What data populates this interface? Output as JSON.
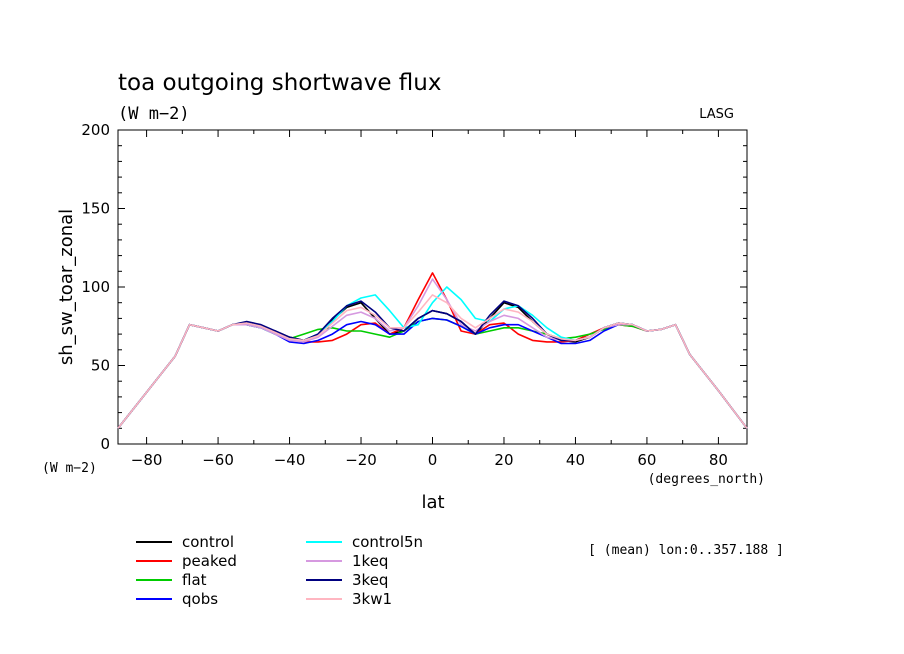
{
  "chart_data": {
    "type": "line",
    "title": "toa outgoing shortwave flux",
    "subtitle": "(W m−2)",
    "source_label": "LASG",
    "ylabel": "sh_sw_toar_zonal",
    "y_units": "(W m−2)",
    "xlabel": "lat",
    "x_units": "(degrees_north)",
    "annotation": "[ (mean) lon:0..357.188 ]",
    "xlim": [
      -88,
      88
    ],
    "ylim": [
      0,
      200
    ],
    "x_ticks": [
      -80,
      -60,
      -40,
      -20,
      0,
      20,
      40,
      60,
      80
    ],
    "y_ticks": [
      0,
      50,
      100,
      150,
      200
    ],
    "grid": false,
    "legend_position": "bottom-left",
    "x": [
      -88,
      -80,
      -72,
      -68,
      -64,
      -60,
      -56,
      -52,
      -48,
      -44,
      -40,
      -36,
      -32,
      -28,
      -24,
      -20,
      -16,
      -12,
      -8,
      -4,
      0,
      4,
      8,
      12,
      16,
      20,
      24,
      28,
      32,
      36,
      40,
      44,
      48,
      52,
      56,
      60,
      64,
      68,
      72,
      80,
      88
    ],
    "series": [
      {
        "name": "control",
        "color": "#000000",
        "values": [
          10,
          33,
          56,
          76,
          74,
          72,
          76,
          77,
          75,
          72,
          68,
          66,
          70,
          79,
          87,
          90,
          80,
          70,
          72,
          80,
          85,
          83,
          78,
          70,
          80,
          90,
          87,
          78,
          70,
          66,
          65,
          68,
          74,
          77,
          76,
          72,
          73,
          76,
          57,
          34,
          10
        ]
      },
      {
        "name": "peaked",
        "color": "#ff0000",
        "values": [
          10,
          33,
          56,
          76,
          74,
          72,
          76,
          76,
          74,
          70,
          66,
          65,
          65,
          66,
          70,
          76,
          77,
          70,
          74,
          92,
          109,
          92,
          72,
          70,
          76,
          77,
          70,
          66,
          65,
          65,
          66,
          70,
          74,
          76,
          75,
          72,
          73,
          76,
          57,
          34,
          10
        ]
      },
      {
        "name": "flat",
        "color": "#00cc00",
        "values": [
          10,
          33,
          56,
          76,
          74,
          72,
          76,
          76,
          74,
          70,
          67,
          70,
          73,
          74,
          72,
          72,
          70,
          68,
          72,
          78,
          80,
          79,
          75,
          70,
          72,
          74,
          74,
          72,
          70,
          67,
          68,
          70,
          73,
          76,
          75,
          72,
          73,
          76,
          57,
          34,
          10
        ]
      },
      {
        "name": "qobs",
        "color": "#0000ff",
        "values": [
          10,
          33,
          56,
          76,
          74,
          72,
          76,
          76,
          74,
          70,
          65,
          64,
          66,
          70,
          76,
          78,
          76,
          70,
          70,
          78,
          80,
          79,
          75,
          70,
          74,
          76,
          76,
          72,
          68,
          64,
          64,
          66,
          72,
          76,
          76,
          72,
          73,
          76,
          57,
          34,
          10
        ]
      },
      {
        "name": "control5n",
        "color": "#00ffff",
        "values": [
          10,
          33,
          56,
          76,
          74,
          72,
          76,
          76,
          74,
          70,
          67,
          66,
          70,
          78,
          88,
          93,
          95,
          85,
          74,
          76,
          90,
          100,
          92,
          80,
          78,
          86,
          88,
          82,
          74,
          68,
          66,
          68,
          74,
          77,
          76,
          72,
          73,
          76,
          57,
          34,
          10
        ]
      },
      {
        "name": "1keq",
        "color": "#d699e0",
        "values": [
          10,
          33,
          56,
          76,
          74,
          72,
          76,
          76,
          74,
          70,
          66,
          65,
          68,
          75,
          82,
          84,
          80,
          72,
          74,
          88,
          105,
          92,
          76,
          72,
          78,
          82,
          80,
          74,
          68,
          66,
          66,
          68,
          74,
          76,
          76,
          72,
          73,
          76,
          57,
          34,
          10
        ]
      },
      {
        "name": "3keq",
        "color": "#000080",
        "values": [
          10,
          33,
          56,
          76,
          74,
          72,
          76,
          78,
          76,
          72,
          68,
          66,
          70,
          80,
          88,
          91,
          84,
          74,
          72,
          80,
          85,
          83,
          78,
          70,
          82,
          91,
          88,
          80,
          70,
          66,
          66,
          68,
          74,
          77,
          76,
          72,
          73,
          76,
          57,
          34,
          10
        ]
      },
      {
        "name": "3kw1",
        "color": "#ffb6c1",
        "values": [
          10,
          33,
          56,
          76,
          74,
          72,
          76,
          77,
          75,
          71,
          67,
          66,
          69,
          77,
          85,
          87,
          82,
          74,
          74,
          84,
          95,
          90,
          80,
          74,
          80,
          86,
          84,
          78,
          70,
          67,
          66,
          68,
          74,
          77,
          76,
          72,
          73,
          76,
          57,
          34,
          10
        ]
      }
    ]
  }
}
